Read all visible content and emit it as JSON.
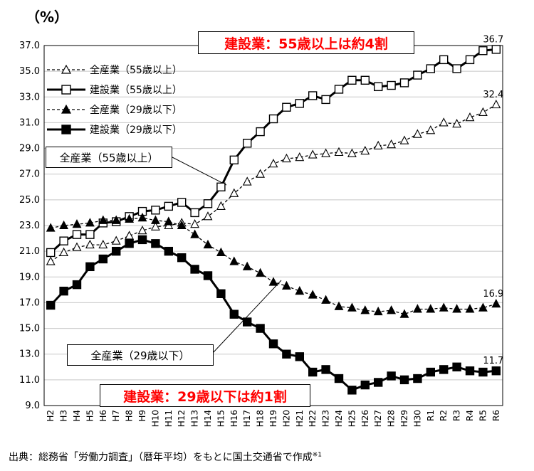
{
  "unit_label": "（%）",
  "source_note": {
    "text": "出典：総務省「労働力調査」（暦年平均）をもとに国土交通省で作成",
    "mark": "※1"
  },
  "callouts": {
    "top": "建設業：55歳以上は約4割",
    "bottom": "建設業：29歳以下は約1割",
    "all_55": "全産業（55歳以上）",
    "all_29": "全産業（29歳以下）"
  },
  "chart_data": {
    "type": "line",
    "x": [
      "H2",
      "H3",
      "H4",
      "H5",
      "H6",
      "H7",
      "H8",
      "H9",
      "H10",
      "H11",
      "H12",
      "H13",
      "H14",
      "H15",
      "H16",
      "H17",
      "H18",
      "H19",
      "H20",
      "H21",
      "H22",
      "H23",
      "H24",
      "H25",
      "H26",
      "H27",
      "H28",
      "H29",
      "H30",
      "R1",
      "R2",
      "R3",
      "R4",
      "R5",
      "R6"
    ],
    "ylim": [
      9.0,
      37.0
    ],
    "yticks": [
      "9.0",
      "11.0",
      "13.0",
      "15.0",
      "17.0",
      "19.0",
      "21.0",
      "23.0",
      "25.0",
      "27.0",
      "29.0",
      "31.0",
      "33.0",
      "35.0",
      "37.0"
    ],
    "grid": true,
    "legend_position": "top-left",
    "series": [
      {
        "name": "全産業（55歳以上）",
        "marker": "triangle-open",
        "line": "dashed",
        "end_label": "32.4",
        "values": [
          20.2,
          20.9,
          21.3,
          21.5,
          21.5,
          21.8,
          22.2,
          22.6,
          22.9,
          23.0,
          23.2,
          23.1,
          23.7,
          24.5,
          25.5,
          26.4,
          27.0,
          27.8,
          28.2,
          28.3,
          28.5,
          28.6,
          28.7,
          28.6,
          28.8,
          29.2,
          29.3,
          29.6,
          30.1,
          30.4,
          31.0,
          30.9,
          31.4,
          31.8,
          32.4
        ]
      },
      {
        "name": "建設業（55歳以上）",
        "marker": "square-open",
        "line": "solid",
        "end_label": "36.7",
        "values": [
          20.9,
          21.8,
          22.3,
          22.3,
          23.2,
          23.3,
          23.7,
          24.1,
          24.2,
          24.5,
          24.8,
          24.0,
          24.7,
          26.0,
          28.1,
          29.4,
          30.3,
          31.3,
          32.2,
          32.5,
          33.1,
          32.8,
          33.6,
          34.3,
          34.3,
          33.8,
          33.9,
          34.1,
          34.7,
          35.2,
          35.9,
          35.2,
          35.9,
          36.6,
          36.7
        ]
      },
      {
        "name": "全産業（29歳以下）",
        "marker": "triangle-filled",
        "line": "dashed",
        "end_label": "16.9",
        "values": [
          22.8,
          23.0,
          23.1,
          23.2,
          23.4,
          23.4,
          23.5,
          23.6,
          23.4,
          23.3,
          23.0,
          22.3,
          21.5,
          20.9,
          20.2,
          19.8,
          19.3,
          18.6,
          18.3,
          17.9,
          17.6,
          17.2,
          16.7,
          16.6,
          16.4,
          16.3,
          16.4,
          16.1,
          16.5,
          16.5,
          16.6,
          16.5,
          16.5,
          16.6,
          16.9
        ]
      },
      {
        "name": "建設業（29歳以下）",
        "marker": "square-filled",
        "line": "solid",
        "end_label": "11.7",
        "values": [
          16.8,
          17.9,
          18.4,
          19.8,
          20.4,
          21.0,
          21.6,
          21.9,
          21.6,
          21.0,
          20.5,
          19.6,
          19.1,
          17.7,
          16.1,
          15.5,
          15.0,
          13.8,
          13.0,
          12.8,
          11.6,
          11.8,
          11.1,
          10.2,
          10.6,
          10.8,
          11.3,
          11.0,
          11.1,
          11.6,
          11.8,
          12.0,
          11.7,
          11.6,
          11.7
        ]
      }
    ]
  }
}
